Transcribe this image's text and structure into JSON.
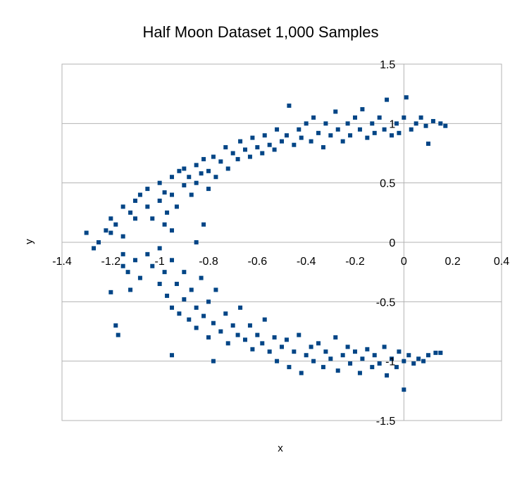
{
  "chart_data": {
    "type": "scatter",
    "title": "Half Moon Dataset 1,000 Samples",
    "xlabel": "x",
    "ylabel": "y",
    "xlim": [
      -1.4,
      0.4
    ],
    "ylim": [
      -1.5,
      1.5
    ],
    "x_ticks": [
      "-1.4",
      "-1.2",
      "-1",
      "-0.8",
      "-0.6",
      "-0.4",
      "-0.2",
      "0",
      "0.2",
      "0.4"
    ],
    "x_tick_values": [
      -1.4,
      -1.2,
      -1,
      -0.8,
      -0.6,
      -0.4,
      -0.2,
      0,
      0.2,
      0.4
    ],
    "y_ticks": [
      "1.5",
      "1",
      "0.5",
      "0",
      "-0.5",
      "-1",
      "-1.5"
    ],
    "y_tick_values": [
      1.5,
      1,
      0.5,
      0,
      -0.5,
      -1,
      -1.5
    ],
    "grid": "horizontal",
    "legend": "none",
    "marker": "square",
    "color": "#004586",
    "points": [
      [
        -1.3,
        0.08
      ],
      [
        -1.25,
        0.0
      ],
      [
        -1.22,
        0.1
      ],
      [
        -1.2,
        0.2
      ],
      [
        -1.18,
        0.15
      ],
      [
        -1.15,
        0.3
      ],
      [
        -1.15,
        0.05
      ],
      [
        -1.12,
        0.25
      ],
      [
        -1.1,
        0.35
      ],
      [
        -1.1,
        0.2
      ],
      [
        -1.08,
        0.4
      ],
      [
        -1.05,
        0.3
      ],
      [
        -1.05,
        0.45
      ],
      [
        -1.03,
        0.2
      ],
      [
        -1.0,
        0.35
      ],
      [
        -1.0,
        0.5
      ],
      [
        -0.98,
        0.42
      ],
      [
        -0.97,
        0.25
      ],
      [
        -0.95,
        0.55
      ],
      [
        -0.95,
        0.4
      ],
      [
        -0.93,
        0.3
      ],
      [
        -0.92,
        0.6
      ],
      [
        -0.9,
        0.48
      ],
      [
        -0.9,
        0.62
      ],
      [
        -0.88,
        0.55
      ],
      [
        -0.87,
        0.4
      ],
      [
        -0.85,
        0.65
      ],
      [
        -0.85,
        0.5
      ],
      [
        -0.83,
        0.58
      ],
      [
        -0.82,
        0.7
      ],
      [
        -0.8,
        0.6
      ],
      [
        -0.8,
        0.45
      ],
      [
        -0.78,
        0.72
      ],
      [
        -0.77,
        0.55
      ],
      [
        -0.75,
        0.68
      ],
      [
        -0.73,
        0.8
      ],
      [
        -0.72,
        0.62
      ],
      [
        -0.7,
        0.75
      ],
      [
        -0.68,
        0.7
      ],
      [
        -0.67,
        0.85
      ],
      [
        -0.65,
        0.78
      ],
      [
        -0.63,
        0.72
      ],
      [
        -0.62,
        0.88
      ],
      [
        -0.6,
        0.8
      ],
      [
        -0.58,
        0.75
      ],
      [
        -0.57,
        0.9
      ],
      [
        -0.55,
        0.82
      ],
      [
        -0.53,
        0.78
      ],
      [
        -0.52,
        0.95
      ],
      [
        -0.5,
        0.85
      ],
      [
        -0.48,
        0.9
      ],
      [
        -0.47,
        1.15
      ],
      [
        -0.45,
        0.82
      ],
      [
        -0.43,
        0.95
      ],
      [
        -0.42,
        0.88
      ],
      [
        -0.4,
        1.0
      ],
      [
        -0.38,
        0.85
      ],
      [
        -0.37,
        1.05
      ],
      [
        -0.35,
        0.92
      ],
      [
        -0.33,
        0.8
      ],
      [
        -0.32,
        1.0
      ],
      [
        -0.3,
        0.9
      ],
      [
        -0.28,
        1.1
      ],
      [
        -0.27,
        0.95
      ],
      [
        -0.25,
        0.85
      ],
      [
        -0.23,
        1.0
      ],
      [
        -0.22,
        0.9
      ],
      [
        -0.2,
        1.05
      ],
      [
        -0.18,
        0.95
      ],
      [
        -0.17,
        1.12
      ],
      [
        -0.15,
        0.88
      ],
      [
        -0.13,
        1.0
      ],
      [
        -0.12,
        0.92
      ],
      [
        -0.1,
        1.05
      ],
      [
        -0.08,
        0.95
      ],
      [
        -0.07,
        1.2
      ],
      [
        -0.05,
        0.9
      ],
      [
        -0.03,
        1.0
      ],
      [
        -0.02,
        0.92
      ],
      [
        0.0,
        1.05
      ],
      [
        0.01,
        1.22
      ],
      [
        0.03,
        0.95
      ],
      [
        0.05,
        1.0
      ],
      [
        0.07,
        1.05
      ],
      [
        0.09,
        0.98
      ],
      [
        0.1,
        0.83
      ],
      [
        0.12,
        1.02
      ],
      [
        0.15,
        1.0
      ],
      [
        0.17,
        0.98
      ],
      [
        -0.85,
        0.0
      ],
      [
        -0.82,
        0.15
      ],
      [
        -0.95,
        0.1
      ],
      [
        -1.2,
        0.08
      ],
      [
        -1.27,
        -0.05
      ],
      [
        -0.98,
        0.15
      ],
      [
        -1.15,
        -0.1
      ],
      [
        -1.13,
        -0.25
      ],
      [
        -1.12,
        -0.4
      ],
      [
        -1.1,
        -0.15
      ],
      [
        -1.08,
        -0.3
      ],
      [
        -1.05,
        -0.1
      ],
      [
        -1.03,
        -0.2
      ],
      [
        -1.0,
        -0.05
      ],
      [
        -1.0,
        -0.35
      ],
      [
        -0.98,
        -0.25
      ],
      [
        -0.97,
        -0.45
      ],
      [
        -0.95,
        -0.15
      ],
      [
        -0.95,
        -0.55
      ],
      [
        -0.93,
        -0.35
      ],
      [
        -0.92,
        -0.6
      ],
      [
        -0.9,
        -0.25
      ],
      [
        -0.9,
        -0.48
      ],
      [
        -0.88,
        -0.65
      ],
      [
        -0.87,
        -0.4
      ],
      [
        -0.85,
        -0.55
      ],
      [
        -0.85,
        -0.72
      ],
      [
        -0.83,
        -0.3
      ],
      [
        -0.82,
        -0.62
      ],
      [
        -0.8,
        -0.5
      ],
      [
        -0.8,
        -0.8
      ],
      [
        -0.78,
        -0.68
      ],
      [
        -0.77,
        -0.4
      ],
      [
        -0.75,
        -0.75
      ],
      [
        -0.73,
        -0.6
      ],
      [
        -0.72,
        -0.85
      ],
      [
        -0.7,
        -0.7
      ],
      [
        -0.68,
        -0.78
      ],
      [
        -0.67,
        -0.55
      ],
      [
        -0.65,
        -0.82
      ],
      [
        -0.63,
        -0.7
      ],
      [
        -0.62,
        -0.9
      ],
      [
        -0.6,
        -0.78
      ],
      [
        -0.58,
        -0.85
      ],
      [
        -0.57,
        -0.65
      ],
      [
        -0.55,
        -0.92
      ],
      [
        -0.53,
        -0.8
      ],
      [
        -0.52,
        -1.0
      ],
      [
        -0.5,
        -0.88
      ],
      [
        -0.48,
        -0.82
      ],
      [
        -0.47,
        -1.05
      ],
      [
        -0.45,
        -0.92
      ],
      [
        -0.43,
        -0.78
      ],
      [
        -0.42,
        -1.1
      ],
      [
        -0.4,
        -0.95
      ],
      [
        -0.38,
        -0.88
      ],
      [
        -0.37,
        -1.0
      ],
      [
        -0.35,
        -0.85
      ],
      [
        -0.33,
        -1.05
      ],
      [
        -0.32,
        -0.92
      ],
      [
        -0.3,
        -0.98
      ],
      [
        -0.28,
        -0.8
      ],
      [
        -0.27,
        -1.08
      ],
      [
        -0.25,
        -0.95
      ],
      [
        -0.23,
        -0.88
      ],
      [
        -0.22,
        -1.02
      ],
      [
        -0.2,
        -0.92
      ],
      [
        -0.18,
        -1.1
      ],
      [
        -0.17,
        -0.98
      ],
      [
        -0.15,
        -0.9
      ],
      [
        -0.13,
        -1.05
      ],
      [
        -0.12,
        -0.95
      ],
      [
        -0.1,
        -1.02
      ],
      [
        -0.08,
        -0.88
      ],
      [
        -0.07,
        -1.12
      ],
      [
        -0.05,
        -0.98
      ],
      [
        -0.03,
        -1.05
      ],
      [
        -0.02,
        -0.92
      ],
      [
        0.0,
        -1.0
      ],
      [
        0.0,
        -1.24
      ],
      [
        0.02,
        -0.95
      ],
      [
        0.04,
        -1.02
      ],
      [
        0.06,
        -0.98
      ],
      [
        0.08,
        -1.0
      ],
      [
        0.1,
        -0.95
      ],
      [
        0.13,
        -0.93
      ],
      [
        0.15,
        -0.93
      ],
      [
        -1.18,
        -0.7
      ],
      [
        -1.17,
        -0.78
      ],
      [
        -1.2,
        -0.42
      ],
      [
        -1.15,
        -0.2
      ],
      [
        -0.95,
        -0.95
      ],
      [
        -0.78,
        -1.0
      ]
    ]
  }
}
